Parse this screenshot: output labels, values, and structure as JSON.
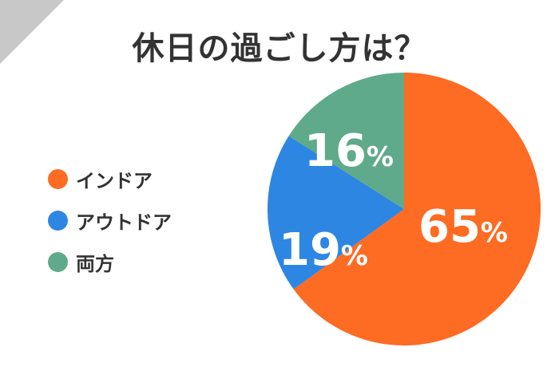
{
  "chart_data": {
    "type": "pie",
    "title": "休日の過ごし方は？",
    "categories": [
      "インドア",
      "アウトドア",
      "両方"
    ],
    "values": [
      65,
      19,
      16
    ],
    "data_labels": [
      "65",
      "19",
      "16"
    ],
    "unit": "%",
    "colors": [
      "#fe6b22",
      "#2e86e3",
      "#5faa8a"
    ],
    "legend_placement": "left",
    "start_angle": "top, clockwise"
  }
}
